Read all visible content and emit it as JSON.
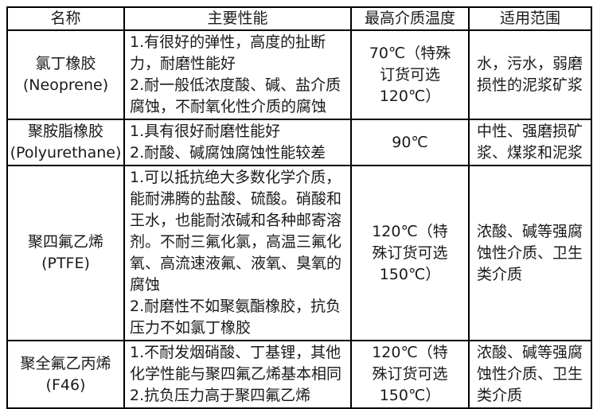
{
  "table": {
    "headers": [
      "名称",
      "主要性能",
      "最高介质温度",
      "适用范围"
    ],
    "rows": [
      {
        "name_cn": "氯丁橡胶",
        "name_en": "(Neoprene)",
        "properties": [
          "1.有很好的弹性，高度的扯断力，耐磨性能好",
          "2.耐一般低浓度酸、碱、盐介质腐蚀，不耐氧化性介质的腐蚀"
        ],
        "temperature": "70℃（特殊订货可选120℃）",
        "range": "水，污水，弱磨损性的泥浆矿浆"
      },
      {
        "name_cn": "聚胺脂橡胶",
        "name_en": "(Polyurethane)",
        "properties": [
          "1.具有很好耐磨性能好",
          "2.耐酸、碱腐蚀腐蚀性能较差"
        ],
        "temperature": "90℃",
        "range": "中性、强磨损矿浆、煤浆和泥浆"
      },
      {
        "name_cn": "聚四氟乙烯",
        "name_en": "(PTFE)",
        "properties": [
          "1.可以抵抗绝大多数化学介质，能耐沸腾的盐酸、硫酸。硝酸和王水，也能耐浓碱和各种邮寄溶剂。不耐三氟化氯，高温三氟化氧、高流速液氟、液氧、臭氧的腐蚀",
          "2.耐磨性不如聚氨酯橡胶，抗负压力不如氯丁橡胶"
        ],
        "temperature": "120℃（特殊订货可选150℃）",
        "range": "浓酸、碱等强腐蚀性介质、卫生类介质"
      },
      {
        "name_cn": "聚全氟乙丙烯",
        "name_en": "(F46)",
        "properties": [
          "1.不耐发烟硝酸、丁基锂，其他化学性能与聚四氟乙烯基本相同",
          "2.抗负压力高于聚四氟乙烯"
        ],
        "temperature": "120℃（特殊订货可选150℃）",
        "range": "浓酸、碱等强腐蚀性介质、卫生类介质"
      }
    ]
  }
}
